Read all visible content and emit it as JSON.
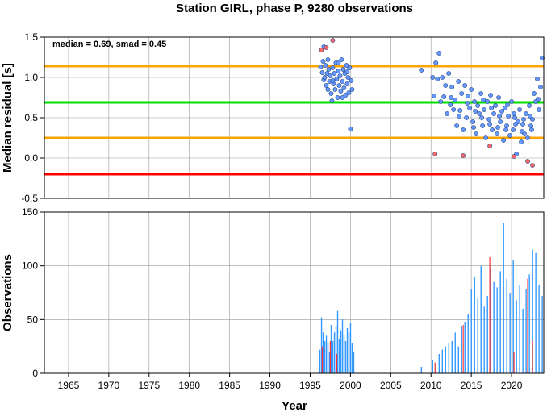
{
  "title": "Station GIRL, phase P, 9280 observations",
  "chart_data": [
    {
      "type": "scatter",
      "name": "median-residual-panel",
      "xlabel": "",
      "ylabel": "Median residual [s]",
      "xlim": [
        1962,
        2024
      ],
      "ylim": [
        -0.5,
        1.5
      ],
      "yticks": [
        -0.5,
        0.0,
        0.5,
        1.0,
        1.5
      ],
      "ytick_labels": [
        "-0.5",
        "0.0",
        "0.5",
        "1.0",
        "1.5"
      ],
      "grid": true,
      "annotation": "median = 0.69, smad = 0.45",
      "reference_lines": [
        {
          "y": 1.14,
          "color": "#ffa500"
        },
        {
          "y": 0.69,
          "color": "#00e000"
        },
        {
          "y": 0.25,
          "color": "#ffa500"
        },
        {
          "y": -0.2,
          "color": "#ff0000"
        }
      ],
      "series": [
        {
          "color": "#6699ff",
          "points": [
            [
              1996.3,
              1.13
            ],
            [
              1996.5,
              1.06
            ],
            [
              1996.6,
              1.2
            ],
            [
              1996.7,
              0.97
            ],
            [
              1996.8,
              1.0
            ],
            [
              1996.9,
              1.15
            ],
            [
              1997.0,
              0.9
            ],
            [
              1997.1,
              1.05
            ],
            [
              1997.2,
              0.85
            ],
            [
              1997.3,
              1.1
            ],
            [
              1997.4,
              0.95
            ],
            [
              1997.5,
              1.02
            ],
            [
              1997.6,
              0.8
            ],
            [
              1997.7,
              0.71
            ],
            [
              1997.8,
              1.12
            ],
            [
              1997.9,
              0.92
            ],
            [
              1998.0,
              1.05
            ],
            [
              1998.1,
              0.85
            ],
            [
              1998.2,
              1.18
            ],
            [
              1998.3,
              0.98
            ],
            [
              1998.4,
              0.75
            ],
            [
              1998.5,
              1.08
            ],
            [
              1998.6,
              0.9
            ],
            [
              1998.7,
              1.02
            ],
            [
              1998.8,
              0.83
            ],
            [
              1998.9,
              1.22
            ],
            [
              1999.0,
              0.95
            ],
            [
              1999.1,
              1.1
            ],
            [
              1999.2,
              0.87
            ],
            [
              1999.3,
              1.05
            ],
            [
              1999.4,
              0.78
            ],
            [
              1999.5,
              1.15
            ],
            [
              1999.6,
              0.92
            ],
            [
              1999.7,
              1.0
            ],
            [
              1999.8,
              0.81
            ],
            [
              1999.9,
              1.12
            ],
            [
              2000.0,
              0.36
            ],
            [
              2000.1,
              0.96
            ],
            [
              2000.2,
              0.85
            ],
            [
              1996.7,
              1.38
            ],
            [
              1997.2,
              1.22
            ],
            [
              1998.5,
              1.18
            ],
            [
              1999.0,
              0.75
            ],
            [
              1999.6,
              1.07
            ],
            [
              1997.8,
              0.96
            ],
            [
              2008.8,
              1.09
            ],
            [
              2010.2,
              1.0
            ],
            [
              2010.4,
              0.77
            ],
            [
              2010.6,
              1.18
            ],
            [
              2010.8,
              0.98
            ],
            [
              2011.0,
              1.3
            ],
            [
              2011.2,
              0.7
            ],
            [
              2011.4,
              1.0
            ],
            [
              2011.6,
              0.76
            ],
            [
              2011.8,
              0.9
            ],
            [
              2012.0,
              0.55
            ],
            [
              2012.2,
              1.05
            ],
            [
              2012.4,
              0.66
            ],
            [
              2012.6,
              0.88
            ],
            [
              2012.8,
              0.6
            ],
            [
              2013.0,
              0.72
            ],
            [
              2013.2,
              0.4
            ],
            [
              2013.4,
              0.95
            ],
            [
              2013.6,
              0.59
            ],
            [
              2013.8,
              0.8
            ],
            [
              2014.0,
              0.35
            ],
            [
              2014.2,
              0.9
            ],
            [
              2014.4,
              0.5
            ],
            [
              2014.6,
              0.77
            ],
            [
              2014.8,
              0.62
            ],
            [
              2015.0,
              0.85
            ],
            [
              2015.2,
              0.45
            ],
            [
              2015.4,
              0.7
            ],
            [
              2015.6,
              0.3
            ],
            [
              2015.8,
              0.65
            ],
            [
              2016.0,
              0.55
            ],
            [
              2016.2,
              0.8
            ],
            [
              2016.4,
              0.4
            ],
            [
              2016.6,
              0.6
            ],
            [
              2016.8,
              0.25
            ],
            [
              2017.0,
              0.7
            ],
            [
              2017.2,
              0.48
            ],
            [
              2017.4,
              0.78
            ],
            [
              2017.6,
              0.35
            ],
            [
              2017.8,
              0.55
            ],
            [
              2018.0,
              0.65
            ],
            [
              2018.2,
              0.3
            ],
            [
              2018.4,
              0.75
            ],
            [
              2018.6,
              0.45
            ],
            [
              2018.8,
              0.58
            ],
            [
              2019.0,
              0.22
            ],
            [
              2019.2,
              0.62
            ],
            [
              2019.4,
              0.4
            ],
            [
              2019.6,
              0.52
            ],
            [
              2019.8,
              0.28
            ],
            [
              2020.0,
              0.7
            ],
            [
              2020.2,
              0.35
            ],
            [
              2020.4,
              0.5
            ],
            [
              2020.6,
              0.05
            ],
            [
              2020.8,
              0.45
            ],
            [
              2021.0,
              0.6
            ],
            [
              2021.2,
              0.2
            ],
            [
              2021.4,
              0.42
            ],
            [
              2021.6,
              0.3
            ],
            [
              2021.8,
              0.55
            ],
            [
              2022.0,
              0.25
            ],
            [
              2022.2,
              0.65
            ],
            [
              2022.4,
              0.4
            ],
            [
              2022.6,
              0.48
            ],
            [
              2022.8,
              0.8
            ],
            [
              2023.0,
              0.7
            ],
            [
              2023.2,
              0.98
            ],
            [
              2023.4,
              0.6
            ],
            [
              2023.6,
              0.88
            ],
            [
              2023.8,
              1.24
            ],
            [
              2012.5,
              0.75
            ],
            [
              2013.5,
              0.52
            ],
            [
              2014.5,
              0.68
            ],
            [
              2015.5,
              0.58
            ],
            [
              2016.5,
              0.72
            ],
            [
              2017.5,
              0.62
            ],
            [
              2018.5,
              0.52
            ],
            [
              2019.5,
              0.66
            ],
            [
              2020.5,
              0.42
            ],
            [
              2021.5,
              0.48
            ],
            [
              2022.5,
              0.35
            ],
            [
              2015.3,
              0.38
            ],
            [
              2016.3,
              0.5
            ],
            [
              2017.3,
              0.42
            ],
            [
              2018.3,
              0.38
            ],
            [
              2019.3,
              0.35
            ],
            [
              2020.3,
              0.55
            ],
            [
              2021.3,
              0.33
            ],
            [
              2022.3,
              0.52
            ],
            [
              2023.3,
              0.73
            ]
          ]
        },
        {
          "color": "#ff6666",
          "points": [
            [
              1996.4,
              1.34
            ],
            [
              1997.0,
              1.37
            ],
            [
              1997.8,
              1.46
            ],
            [
              2010.5,
              0.05
            ],
            [
              2014.0,
              0.03
            ],
            [
              2017.3,
              0.15
            ],
            [
              2020.3,
              0.02
            ],
            [
              2022.0,
              -0.04
            ],
            [
              2022.6,
              -0.09
            ]
          ]
        }
      ]
    },
    {
      "type": "bar",
      "name": "observations-panel",
      "xlabel": "Year",
      "ylabel": "Observations",
      "xlim": [
        1962,
        2024
      ],
      "ylim": [
        0,
        150
      ],
      "yticks": [
        0,
        50,
        100,
        150
      ],
      "ytick_labels": [
        "0",
        "50",
        "100",
        "150"
      ],
      "xticks": [
        1965,
        1970,
        1975,
        1980,
        1985,
        1990,
        1995,
        2000,
        2005,
        2010,
        2015,
        2020
      ],
      "xtick_labels": [
        "1965",
        "1970",
        "1975",
        "1980",
        "1985",
        "1990",
        "1995",
        "2000",
        "2005",
        "2010",
        "2015",
        "2020"
      ],
      "grid": true,
      "series": [
        {
          "color": "#3399ff",
          "x": [
            1996.2,
            1996.4,
            1996.6,
            1996.8,
            1997.0,
            1997.2,
            1997.4,
            1997.6,
            1997.8,
            1998.0,
            1998.2,
            1998.4,
            1998.6,
            1998.8,
            1999.0,
            1999.2,
            1999.4,
            1999.6,
            1999.8,
            2000.0,
            2000.2,
            2000.4,
            2008.8,
            2010.2,
            2010.6,
            2011.0,
            2011.4,
            2011.8,
            2012.2,
            2012.6,
            2013.0,
            2013.4,
            2013.8,
            2014.2,
            2014.6,
            2015.0,
            2015.4,
            2015.8,
            2016.2,
            2016.6,
            2017.0,
            2017.4,
            2017.8,
            2018.2,
            2018.6,
            2019.0,
            2019.4,
            2019.8,
            2020.2,
            2020.6,
            2021.0,
            2021.4,
            2021.8,
            2022.2,
            2022.6,
            2023.0,
            2023.4,
            2023.8
          ],
          "values": [
            22,
            52,
            38,
            30,
            35,
            28,
            20,
            45,
            30,
            38,
            44,
            58,
            32,
            40,
            50,
            36,
            30,
            42,
            38,
            47,
            28,
            20,
            6,
            12,
            8,
            18,
            22,
            25,
            28,
            30,
            38,
            25,
            44,
            48,
            55,
            78,
            90,
            70,
            100,
            62,
            72,
            98,
            85,
            80,
            95,
            140,
            88,
            75,
            105,
            68,
            82,
            60,
            78,
            92,
            115,
            112,
            82,
            72
          ]
        },
        {
          "color": "#ff3333",
          "x": [
            1996.5,
            1997.5,
            1998.3,
            2010.5,
            2014.0,
            2017.3,
            2020.3,
            2022.0,
            2022.6
          ],
          "values": [
            25,
            30,
            18,
            10,
            45,
            108,
            20,
            88,
            30
          ]
        }
      ]
    }
  ]
}
